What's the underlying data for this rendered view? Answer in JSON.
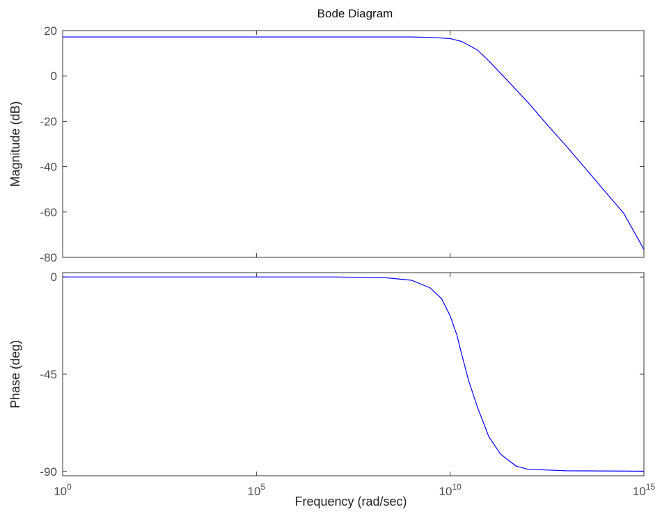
{
  "chart_data": {
    "type": "line",
    "title": "Bode Diagram",
    "xlabel": "Frequency  (rad/sec)",
    "x_scale": "log",
    "xlim": [
      1,
      1000000000000000.0
    ],
    "x_ticks": [
      {
        "value": 1,
        "base": "10",
        "exp": "0"
      },
      {
        "value": 100000,
        "base": "10",
        "exp": "5"
      },
      {
        "value": 10000000000,
        "base": "10",
        "exp": "10"
      },
      {
        "value": 1000000000000000,
        "base": "10",
        "exp": "15"
      }
    ],
    "grid": false,
    "colors": {
      "line": "#0000ff",
      "axes": "#333333",
      "text": "#4d4d4d"
    },
    "panels": [
      {
        "name": "magnitude",
        "ylabel": "Magnitude (dB)",
        "ylim": [
          -80,
          20
        ],
        "yticks": [
          -80,
          -60,
          -40,
          -20,
          0,
          20
        ],
        "ytick_labels": [
          "-80",
          "-60",
          "-40",
          "-20",
          "0",
          "20"
        ],
        "series": [
          {
            "x": [
              1,
              100.0,
              10000.0,
              1000000.0,
              100000000.0,
              1000000000.0,
              3000000000.0,
              10000000000.0,
              20000000000.0,
              50000000000.0,
              100000000000.0,
              300000000000.0,
              1000000000000.0,
              3000000000000.0,
              10000000000000.0,
              30000000000000.0,
              100000000000000.0,
              300000000000000.0,
              1000000000000000.0
            ],
            "y": [
              17.2,
              17.2,
              17.2,
              17.2,
              17.2,
              17.2,
              17.0,
              16.5,
              15.2,
              11.5,
              6.6,
              -2.0,
              -11.5,
              -21.0,
              -31.0,
              -40.5,
              -51.0,
              -60.5,
              -76.5
            ]
          }
        ]
      },
      {
        "name": "phase",
        "ylabel": "Phase (deg)",
        "ylim": [
          -92,
          2
        ],
        "yticks": [
          -90,
          -45,
          0
        ],
        "ytick_labels": [
          "-90",
          "-45",
          "0"
        ],
        "series": [
          {
            "x": [
              1,
              10000.0,
              10000000.0,
              200000000.0,
              1000000000.0,
              3000000000.0,
              6000000000.0,
              10000000000.0,
              15000000000.0,
              20000000000.0,
              30000000000.0,
              50000000000.0,
              100000000000.0,
              200000000000.0,
              500000000000.0,
              1000000000000.0,
              10000000000000.0,
              1000000000000000.0
            ],
            "y": [
              0,
              0,
              0,
              -0.3,
              -1.5,
              -5,
              -10,
              -18,
              -27,
              -36,
              -48,
              -60,
              -74,
              -82,
              -87.5,
              -89,
              -89.7,
              -89.9
            ]
          }
        ]
      }
    ]
  }
}
